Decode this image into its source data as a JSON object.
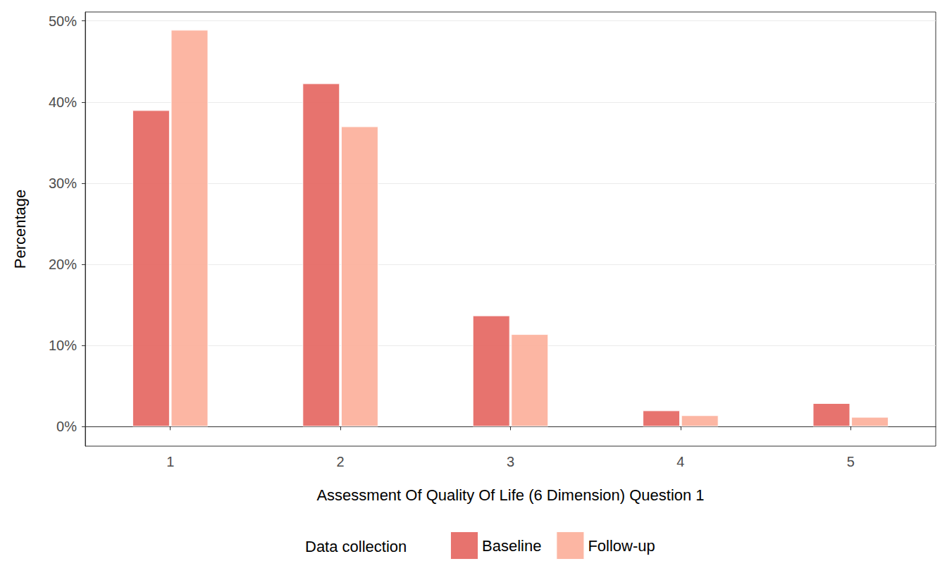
{
  "chart_data": {
    "type": "bar",
    "x_label": "Assessment Of Quality Of Life (6 Dimension) Question 1",
    "y_label": "Percentage",
    "categories": [
      "1",
      "2",
      "3",
      "4",
      "5"
    ],
    "series": [
      {
        "name": "Baseline",
        "color": "#e66b66",
        "values": [
          39.0,
          42.3,
          13.7,
          2.0,
          2.9
        ]
      },
      {
        "name": "Follow-up",
        "color": "#fcb29e",
        "values": [
          48.9,
          37.0,
          11.4,
          1.4,
          1.2
        ]
      }
    ],
    "ylim": [
      -2.4,
      51.1
    ],
    "yticks": [
      {
        "value": 0,
        "label": "0%"
      },
      {
        "value": 10,
        "label": "10%"
      },
      {
        "value": 20,
        "label": "20%"
      },
      {
        "value": 30,
        "label": "30%"
      },
      {
        "value": 40,
        "label": "40%"
      },
      {
        "value": 50,
        "label": "50%"
      }
    ],
    "grid": true,
    "legend": "bottom",
    "legend_title": "Data collection"
  }
}
